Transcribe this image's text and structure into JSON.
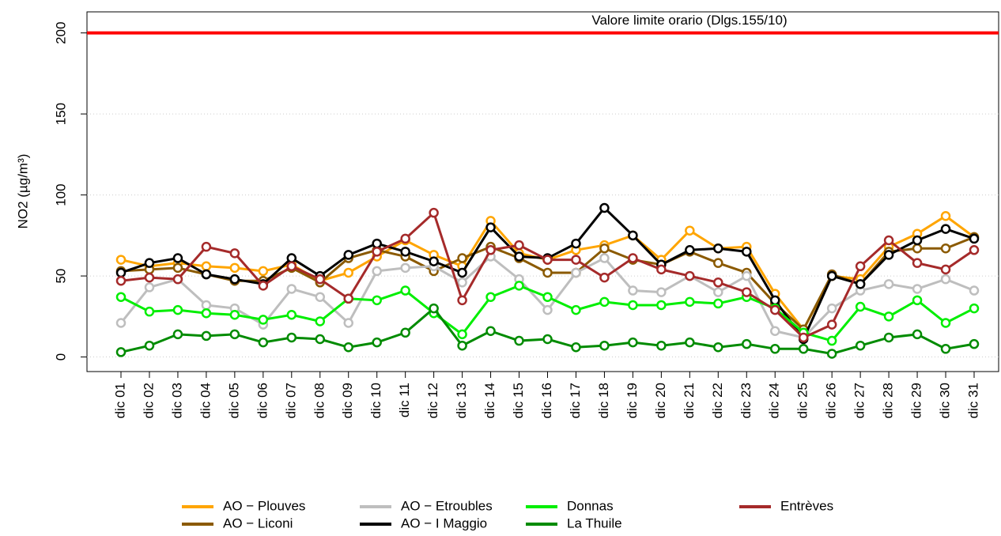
{
  "chart_data": {
    "type": "line",
    "y_label": "NO2 (µg/m³)",
    "categories": [
      "dic 01",
      "dic 02",
      "dic 03",
      "dic 04",
      "dic 05",
      "dic 06",
      "dic 07",
      "dic 08",
      "dic 09",
      "dic 10",
      "dic 11",
      "dic 12",
      "dic 13",
      "dic 14",
      "dic 15",
      "dic 16",
      "dic 17",
      "dic 18",
      "dic 19",
      "dic 20",
      "dic 21",
      "dic 22",
      "dic 23",
      "dic 24",
      "dic 25",
      "dic 26",
      "dic 27",
      "dic 28",
      "dic 29",
      "dic 30",
      "dic 31"
    ],
    "series": [
      {
        "name": "AO − Plouves",
        "color": "#ffa500",
        "values": [
          60,
          56,
          58,
          56,
          55,
          53,
          57,
          47,
          52,
          62,
          72,
          63,
          56,
          84,
          64,
          60,
          66,
          69,
          75,
          60,
          78,
          67,
          68,
          39,
          17,
          50,
          48,
          68,
          76,
          87,
          74
        ]
      },
      {
        "name": "AO − Liconi",
        "color": "#8b5a00",
        "values": [
          53,
          54,
          55,
          51,
          47,
          47,
          55,
          46,
          61,
          66,
          62,
          53,
          61,
          68,
          61,
          52,
          52,
          67,
          60,
          57,
          65,
          58,
          52,
          33,
          17,
          51,
          45,
          65,
          67,
          67,
          74
        ]
      },
      {
        "name": "AO − Etroubles",
        "color": "#bebebe",
        "values": [
          21,
          43,
          48,
          32,
          30,
          20,
          42,
          37,
          21,
          53,
          55,
          56,
          46,
          62,
          48,
          29,
          52,
          61,
          41,
          40,
          50,
          40,
          50,
          16,
          12,
          30,
          41,
          45,
          42,
          48,
          41
        ]
      },
      {
        "name": "AO − I Maggio",
        "color": "#000000",
        "values": [
          52,
          58,
          61,
          51,
          48,
          45,
          61,
          50,
          63,
          70,
          65,
          59,
          52,
          80,
          62,
          61,
          70,
          92,
          75,
          57,
          66,
          67,
          65,
          35,
          11,
          50,
          45,
          63,
          72,
          79,
          73
        ]
      },
      {
        "name": "Donnas",
        "color": "#00ee00",
        "values": [
          37,
          28,
          29,
          27,
          26,
          23,
          26,
          22,
          36,
          35,
          41,
          27,
          14,
          37,
          44,
          37,
          29,
          34,
          32,
          32,
          34,
          33,
          37,
          30,
          15,
          10,
          31,
          25,
          35,
          21,
          30
        ]
      },
      {
        "name": "La Thuile",
        "color": "#008b00",
        "values": [
          3,
          7,
          14,
          13,
          14,
          9,
          12,
          11,
          6,
          9,
          15,
          30,
          7,
          16,
          10,
          11,
          6,
          7,
          9,
          7,
          9,
          6,
          8,
          5,
          5,
          2,
          7,
          12,
          14,
          5,
          8
        ]
      },
      {
        "name": "Entrèves",
        "color": "#a52a2a",
        "values": [
          47,
          49,
          48,
          68,
          64,
          44,
          56,
          48,
          36,
          65,
          73,
          89,
          35,
          66,
          69,
          60,
          60,
          49,
          61,
          54,
          50,
          46,
          40,
          29,
          12,
          20,
          56,
          72,
          58,
          54,
          66
        ]
      }
    ],
    "limit": {
      "value": 200,
      "label": "Valore limite orario (Dlgs.155/10)",
      "color": "#ff0000"
    },
    "ylim": [
      -9,
      213
    ],
    "yticks": [
      0,
      50,
      100,
      150,
      200
    ],
    "grid": true,
    "legend": "bottom"
  }
}
